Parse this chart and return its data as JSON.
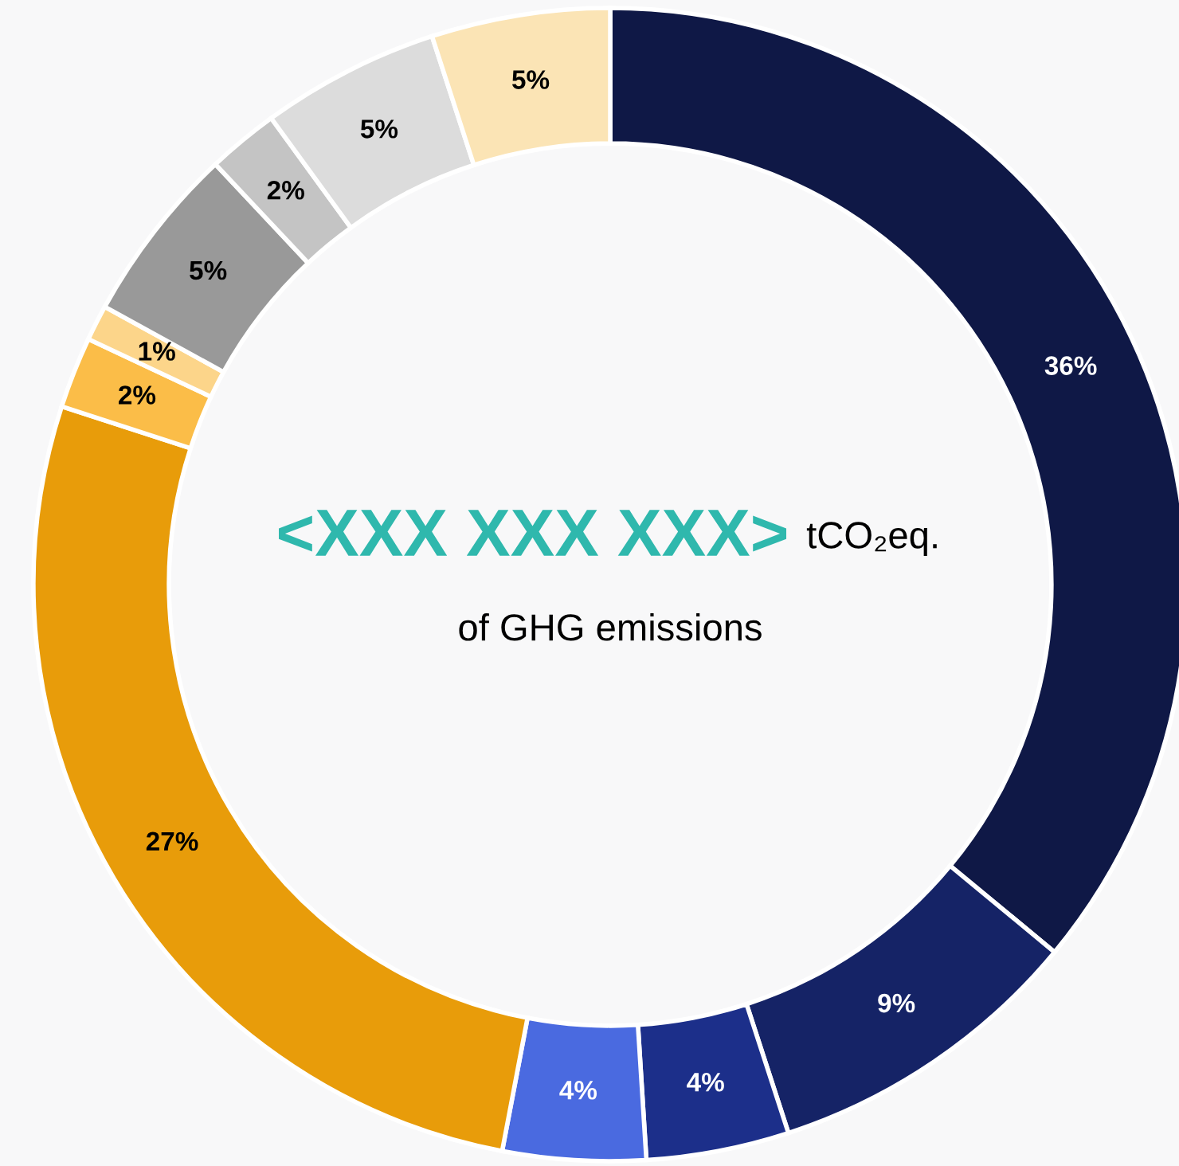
{
  "chart_data": {
    "type": "donut",
    "categories": [
      null,
      null,
      null,
      null,
      null,
      null,
      null,
      null,
      null,
      null,
      null
    ],
    "values": [
      36,
      9,
      4,
      4,
      27,
      2,
      1,
      5,
      2,
      5,
      5
    ],
    "colors": [
      "#0f1846",
      "#152366",
      "#1c2f8a",
      "#4a6ae0",
      "#e89c0a",
      "#fbbd48",
      "#fcd58a",
      "#999999",
      "#c4c4c4",
      "#dcdcdc",
      "#fbe4b5"
    ],
    "value_labels": [
      "36%",
      "9%",
      "4%",
      "4%",
      "27%",
      "2%",
      "1%",
      "5%",
      "2%",
      "5%",
      "5%"
    ],
    "annotations": [
      "<XXX XXX XXX>",
      "tCO₂eq.",
      "of GHG emissions"
    ],
    "legend": false
  }
}
